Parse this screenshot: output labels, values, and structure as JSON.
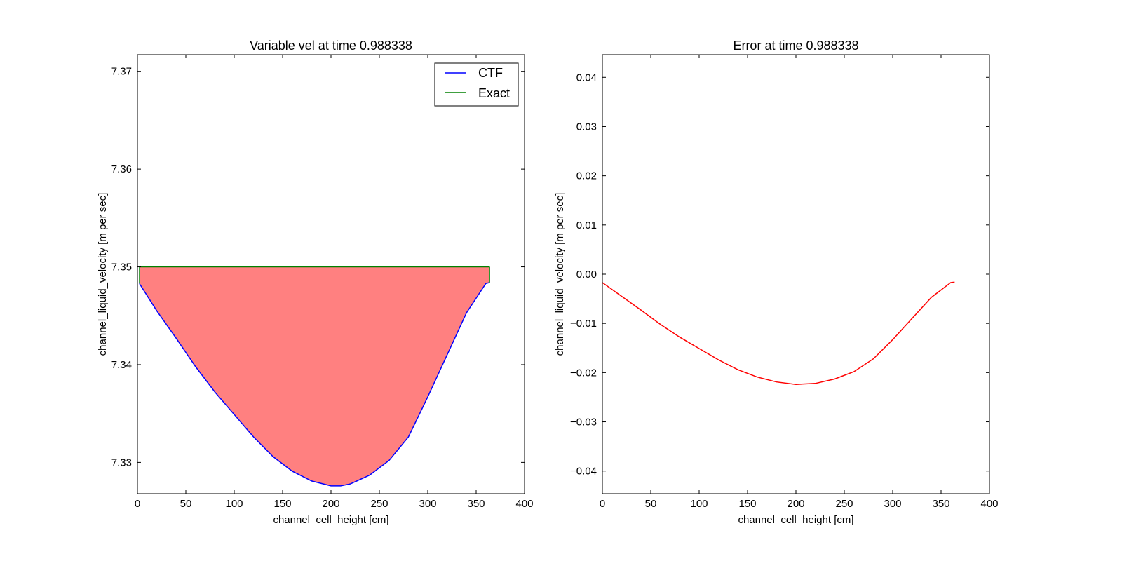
{
  "chart_data": [
    {
      "type": "line",
      "title": "Variable vel at time 0.988338",
      "xlabel": "channel_cell_height [cm]",
      "ylabel": "channel_liquid_velocity [m per sec]",
      "xlim": [
        0,
        400
      ],
      "ylim": [
        7.3268,
        7.3717
      ],
      "xticks": [
        "0",
        "50",
        "100",
        "150",
        "200",
        "250",
        "300",
        "350",
        "400"
      ],
      "yticks": [
        "7.33",
        "7.34",
        "7.35",
        "7.36",
        "7.37"
      ],
      "legend": {
        "placement": "top-right",
        "entries": [
          "CTF",
          "Exact"
        ]
      },
      "fill_between": {
        "series": [
          "CTF",
          "Exact"
        ],
        "color": "#ff8080"
      },
      "series": [
        {
          "name": "CTF",
          "color": "#0000ff",
          "x": [
            2,
            20,
            40,
            60,
            80,
            100,
            120,
            140,
            160,
            180,
            200,
            210,
            220,
            240,
            260,
            280,
            300,
            320,
            340,
            360,
            364
          ],
          "y": [
            7.3483,
            7.3455,
            7.3427,
            7.3398,
            7.3372,
            7.3349,
            7.3326,
            7.3306,
            7.3291,
            7.3281,
            7.3276,
            7.3276,
            7.3278,
            7.3287,
            7.3302,
            7.3326,
            7.3367,
            7.341,
            7.3453,
            7.3483,
            7.3484
          ]
        },
        {
          "name": "Exact",
          "color": "#008000",
          "x": [
            2,
            364
          ],
          "y": [
            7.35,
            7.35
          ]
        }
      ]
    },
    {
      "type": "line",
      "title": "Error at time 0.988338",
      "xlabel": "channel_cell_height [cm]",
      "ylabel": "channel_liquid_velocity [m per sec]",
      "xlim": [
        0,
        400
      ],
      "ylim": [
        -0.0446,
        0.0446
      ],
      "xticks": [
        "0",
        "50",
        "100",
        "150",
        "200",
        "250",
        "300",
        "350",
        "400"
      ],
      "yticks": [
        "0.04",
        "0.03",
        "0.02",
        "0.01",
        "0.00",
        "−0.01",
        "−0.02",
        "−0.03",
        "−0.04"
      ],
      "series": [
        {
          "color": "#ff0000",
          "x": [
            0,
            20,
            40,
            60,
            80,
            100,
            120,
            140,
            160,
            180,
            200,
            220,
            240,
            260,
            280,
            300,
            320,
            340,
            360,
            364
          ],
          "y": [
            -0.0017,
            -0.0045,
            -0.0073,
            -0.0102,
            -0.0128,
            -0.0151,
            -0.0174,
            -0.0194,
            -0.0209,
            -0.0219,
            -0.0224,
            -0.0222,
            -0.0213,
            -0.0198,
            -0.0172,
            -0.0133,
            -0.009,
            -0.0047,
            -0.0017,
            -0.0016
          ]
        }
      ]
    }
  ]
}
